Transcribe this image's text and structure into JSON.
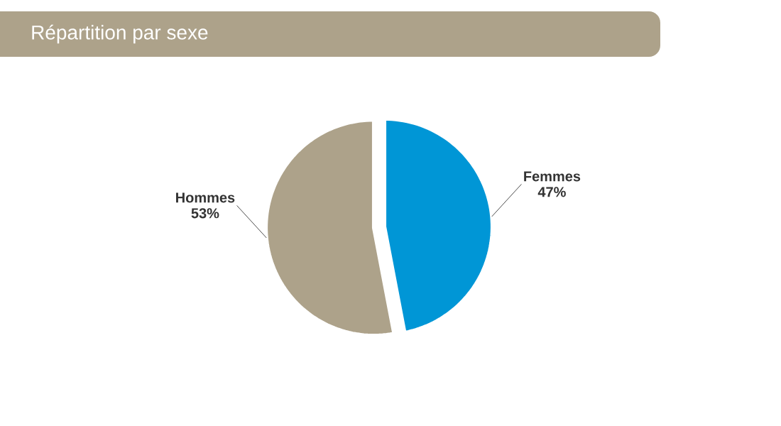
{
  "chart_data": {
    "type": "pie",
    "title": "Répartition par sexe",
    "categories": [
      "Femmes",
      "Hommes"
    ],
    "values": [
      47,
      53
    ],
    "colors": [
      "#0096d6",
      "#ada28a"
    ],
    "value_labels": [
      "47%",
      "53%"
    ]
  }
}
